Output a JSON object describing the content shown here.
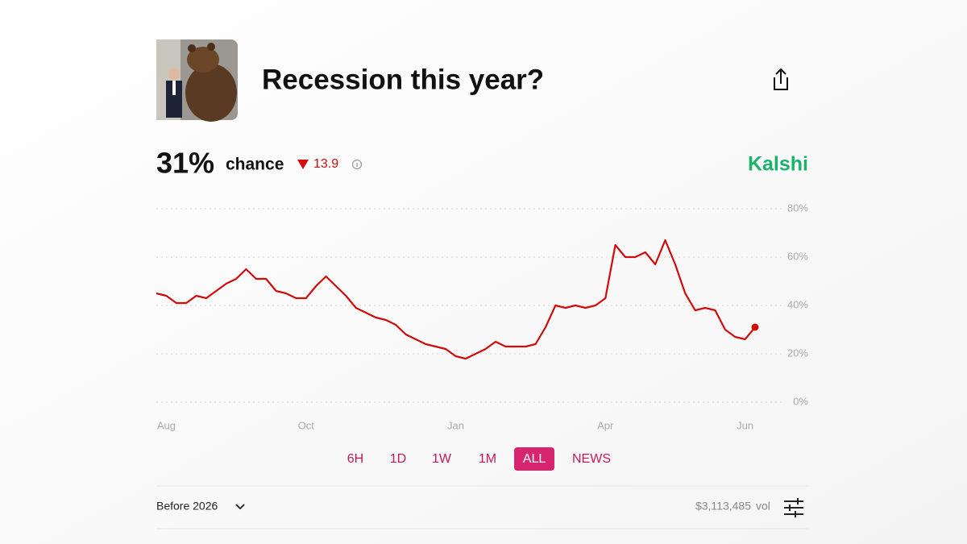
{
  "header": {
    "title": "Recession this year?",
    "brand": "Kalshi"
  },
  "stats": {
    "chance_value": "31%",
    "chance_label": "chance",
    "change": "13.9"
  },
  "chart_data": {
    "type": "line",
    "categories": [
      null,
      "Aug",
      null,
      null,
      null,
      null,
      null,
      null,
      null,
      null,
      null,
      null,
      null,
      null,
      null,
      "Oct",
      null,
      null,
      null,
      null,
      null,
      null,
      null,
      null,
      null,
      null,
      null,
      null,
      null,
      null,
      "Jan",
      null,
      null,
      null,
      null,
      null,
      null,
      null,
      null,
      null,
      null,
      null,
      null,
      null,
      null,
      "Apr",
      null,
      null,
      null,
      null,
      null,
      null,
      null,
      null,
      null,
      null,
      null,
      null,
      null,
      "Jun",
      null
    ],
    "values": [
      45,
      44,
      41,
      41,
      44,
      43,
      46,
      49,
      51,
      55,
      51,
      51,
      46,
      45,
      43,
      43,
      48,
      52,
      48,
      44,
      39,
      37,
      35,
      34,
      32,
      28,
      26,
      24,
      23,
      22,
      19,
      18,
      20,
      22,
      25,
      23,
      23,
      23,
      24,
      31,
      40,
      39,
      40,
      39,
      40,
      43,
      65,
      60,
      60,
      62,
      57,
      67,
      57,
      45,
      38,
      39,
      38,
      30,
      27,
      26,
      31
    ],
    "color": "#d10a0a",
    "ylim": [
      0,
      80
    ],
    "yticks": [
      {
        "value": 0,
        "label": "0%"
      },
      {
        "value": 20,
        "label": "20%"
      },
      {
        "value": 40,
        "label": "40%"
      },
      {
        "value": 60,
        "label": "60%"
      },
      {
        "value": 80,
        "label": "80%"
      }
    ],
    "grid": true
  },
  "ranges": [
    "6H",
    "1D",
    "1W",
    "1M",
    "ALL",
    "NEWS"
  ],
  "footer": {
    "market": "Before 2026",
    "volume": "$3,113,485",
    "volume_unit": "vol"
  }
}
